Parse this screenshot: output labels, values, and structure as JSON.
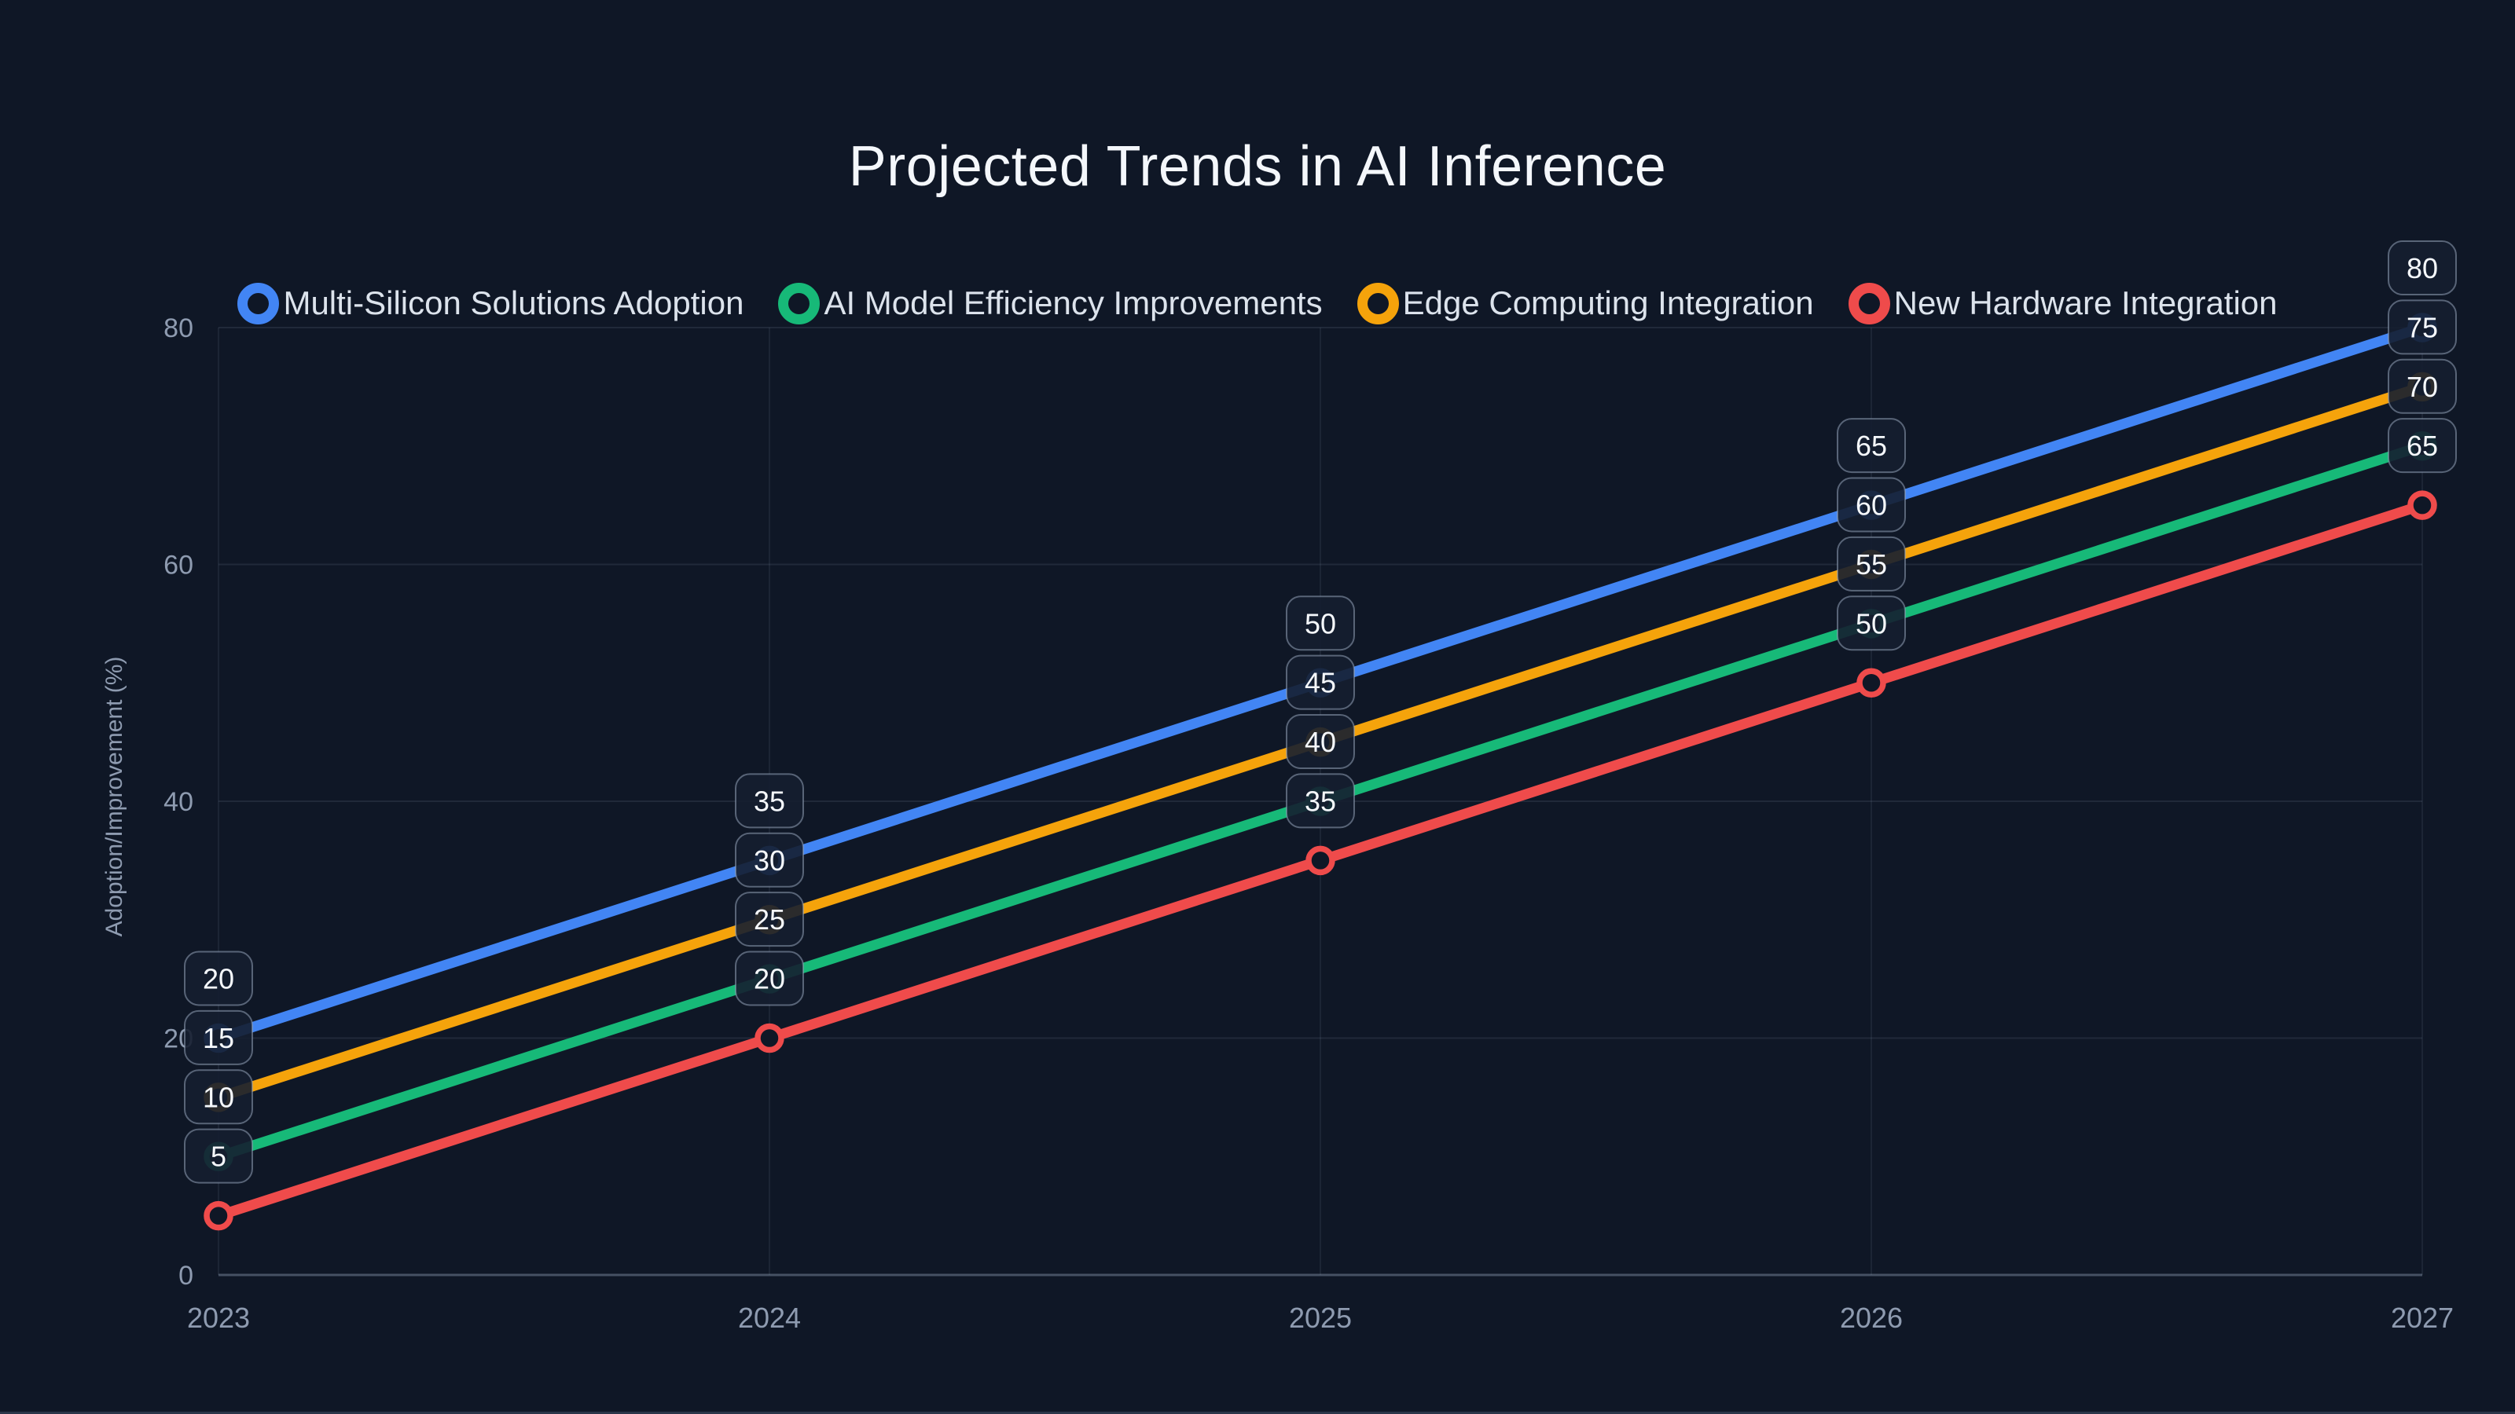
{
  "title": "Projected Trends in AI Inference",
  "chart_data": {
    "type": "line",
    "title": "Projected Trends in AI Inference",
    "categories": [
      "2023",
      "2024",
      "2025",
      "2026",
      "2027"
    ],
    "series": [
      {
        "name": "Multi-Silicon Solutions Adoption",
        "color": "#4285F4",
        "values": [
          20,
          35,
          50,
          65,
          80
        ]
      },
      {
        "name": "AI Model Efficiency Improvements",
        "color": "#17B978",
        "values": [
          10,
          25,
          40,
          55,
          70
        ]
      },
      {
        "name": "Edge Computing Integration",
        "color": "#F5A30B",
        "values": [
          15,
          30,
          45,
          60,
          75
        ]
      },
      {
        "name": "New Hardware Integration",
        "color": "#EF4B4B",
        "values": [
          5,
          20,
          35,
          50,
          65
        ]
      }
    ],
    "xlabel": "",
    "ylabel": "Adoption/Improvement (%)",
    "ylim": [
      0,
      80
    ],
    "yticks": [
      0,
      20,
      40,
      60,
      80
    ],
    "grid": true,
    "legend_position": "top-center",
    "point_labels": "value badge above every data point",
    "marker_style": "open-circle"
  },
  "colors": {
    "background": "#0F1726",
    "title_text": "#F4F7FB",
    "legend_text": "#DCE3EC",
    "tick_text": "#8E9BB0",
    "grid_line": "rgba(148,163,184,0.13)",
    "grid_line_vertical": "rgba(148,163,184,0.10)",
    "axis_line": "rgba(148,163,184,0.42)",
    "badge_fill": "rgba(21,30,48,0.9)",
    "badge_border": "rgba(148,163,184,0.55)",
    "badge_text": "#F5F8FC",
    "marker_fill": "#0F1726"
  }
}
